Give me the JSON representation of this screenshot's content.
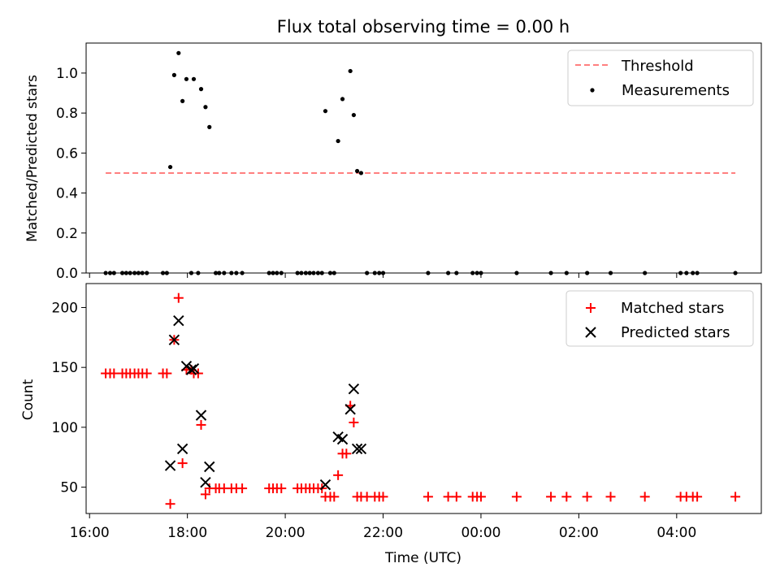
{
  "title": "Flux total observing time = 0.00 h",
  "chart_data": [
    {
      "type": "scatter",
      "ylabel": "Matched/Predicted stars",
      "xlim_hours": [
        15.93,
        29.73
      ],
      "ylim": [
        0,
        1.15
      ],
      "yticks": [
        0,
        0.2,
        0.4,
        0.6,
        0.8,
        1.0
      ],
      "ytick_labels": [
        "0.0",
        "0.2",
        "0.4",
        "0.6",
        "0.8",
        "1.0"
      ],
      "legend_position": "upper right",
      "threshold": {
        "name": "Threshold",
        "value": 0.5,
        "x_range": [
          16.33,
          29.2
        ],
        "color": "#ff7f7f",
        "style": "dashed"
      },
      "series": [
        {
          "name": "Measurements",
          "marker": "dot",
          "color": "#000000",
          "points": [
            [
              16.33,
              0
            ],
            [
              16.42,
              0
            ],
            [
              16.5,
              0
            ],
            [
              16.67,
              0
            ],
            [
              16.75,
              0
            ],
            [
              16.83,
              0
            ],
            [
              16.92,
              0
            ],
            [
              17.0,
              0
            ],
            [
              17.08,
              0
            ],
            [
              17.17,
              0
            ],
            [
              17.5,
              0
            ],
            [
              17.58,
              0
            ],
            [
              17.65,
              0.53
            ],
            [
              17.73,
              0.99
            ],
            [
              17.82,
              1.1
            ],
            [
              17.9,
              0.86
            ],
            [
              17.98,
              0.97
            ],
            [
              18.08,
              0
            ],
            [
              18.13,
              0.97
            ],
            [
              18.22,
              0
            ],
            [
              18.28,
              0.92
            ],
            [
              18.37,
              0.83
            ],
            [
              18.45,
              0.73
            ],
            [
              18.58,
              0
            ],
            [
              18.65,
              0
            ],
            [
              18.75,
              0
            ],
            [
              18.9,
              0
            ],
            [
              19.0,
              0
            ],
            [
              19.12,
              0
            ],
            [
              19.67,
              0
            ],
            [
              19.75,
              0
            ],
            [
              19.83,
              0
            ],
            [
              19.92,
              0
            ],
            [
              20.25,
              0
            ],
            [
              20.33,
              0
            ],
            [
              20.42,
              0
            ],
            [
              20.5,
              0
            ],
            [
              20.58,
              0
            ],
            [
              20.67,
              0
            ],
            [
              20.75,
              0
            ],
            [
              20.82,
              0.81
            ],
            [
              20.92,
              0
            ],
            [
              21.0,
              0
            ],
            [
              21.08,
              0.66
            ],
            [
              21.17,
              0.87
            ],
            [
              21.33,
              1.01
            ],
            [
              21.4,
              0.79
            ],
            [
              21.47,
              0.51
            ],
            [
              21.55,
              0.5
            ],
            [
              21.67,
              0
            ],
            [
              21.83,
              0
            ],
            [
              21.92,
              0
            ],
            [
              22.0,
              0
            ],
            [
              22.92,
              0
            ],
            [
              23.33,
              0
            ],
            [
              23.5,
              0
            ],
            [
              23.83,
              0
            ],
            [
              23.92,
              0
            ],
            [
              24.0,
              0
            ],
            [
              24.73,
              0
            ],
            [
              25.43,
              0
            ],
            [
              25.75,
              0
            ],
            [
              26.17,
              0
            ],
            [
              26.65,
              0
            ],
            [
              27.35,
              0
            ],
            [
              28.08,
              0
            ],
            [
              28.2,
              0
            ],
            [
              28.33,
              0
            ],
            [
              28.42,
              0
            ],
            [
              29.2,
              0
            ]
          ]
        }
      ]
    },
    {
      "type": "scatter",
      "xlabel": "Time (UTC)",
      "ylabel": "Count",
      "xlim_hours": [
        15.93,
        29.73
      ],
      "ylim": [
        28,
        220
      ],
      "yticks": [
        50,
        100,
        150,
        200
      ],
      "ytick_labels": [
        "50",
        "100",
        "150",
        "200"
      ],
      "xticks_hours": [
        16,
        18,
        20,
        22,
        24,
        26,
        28
      ],
      "xtick_labels": [
        "16:00",
        "18:00",
        "20:00",
        "22:00",
        "00:00",
        "02:00",
        "04:00"
      ],
      "legend_position": "upper right",
      "series": [
        {
          "name": "Matched stars",
          "marker": "plus",
          "color": "#ff0000",
          "points": [
            [
              16.33,
              145
            ],
            [
              16.42,
              145
            ],
            [
              16.5,
              145
            ],
            [
              16.67,
              145
            ],
            [
              16.75,
              145
            ],
            [
              16.83,
              145
            ],
            [
              16.92,
              145
            ],
            [
              17.0,
              145
            ],
            [
              17.08,
              145
            ],
            [
              17.17,
              145
            ],
            [
              17.5,
              145
            ],
            [
              17.58,
              145
            ],
            [
              17.65,
              36
            ],
            [
              17.73,
              173
            ],
            [
              17.82,
              208
            ],
            [
              17.9,
              70
            ],
            [
              17.98,
              148
            ],
            [
              18.08,
              148
            ],
            [
              18.13,
              145
            ],
            [
              18.22,
              145
            ],
            [
              18.28,
              102
            ],
            [
              18.37,
              44
            ],
            [
              18.45,
              49
            ],
            [
              18.58,
              49
            ],
            [
              18.65,
              49
            ],
            [
              18.75,
              49
            ],
            [
              18.9,
              49
            ],
            [
              19.0,
              49
            ],
            [
              19.12,
              49
            ],
            [
              19.67,
              49
            ],
            [
              19.75,
              49
            ],
            [
              19.83,
              49
            ],
            [
              19.92,
              49
            ],
            [
              20.25,
              49
            ],
            [
              20.33,
              49
            ],
            [
              20.42,
              49
            ],
            [
              20.5,
              49
            ],
            [
              20.58,
              49
            ],
            [
              20.67,
              49
            ],
            [
              20.75,
              49
            ],
            [
              20.82,
              42
            ],
            [
              20.92,
              42
            ],
            [
              21.0,
              42
            ],
            [
              21.08,
              60
            ],
            [
              21.17,
              78
            ],
            [
              21.25,
              78
            ],
            [
              21.33,
              118
            ],
            [
              21.4,
              104
            ],
            [
              21.47,
              42
            ],
            [
              21.55,
              42
            ],
            [
              21.67,
              42
            ],
            [
              21.83,
              42
            ],
            [
              21.92,
              42
            ],
            [
              22.0,
              42
            ],
            [
              22.92,
              42
            ],
            [
              23.33,
              42
            ],
            [
              23.5,
              42
            ],
            [
              23.83,
              42
            ],
            [
              23.92,
              42
            ],
            [
              24.0,
              42
            ],
            [
              24.73,
              42
            ],
            [
              25.43,
              42
            ],
            [
              25.75,
              42
            ],
            [
              26.17,
              42
            ],
            [
              26.65,
              42
            ],
            [
              27.35,
              42
            ],
            [
              28.08,
              42
            ],
            [
              28.2,
              42
            ],
            [
              28.33,
              42
            ],
            [
              28.42,
              42
            ],
            [
              29.2,
              42
            ]
          ]
        },
        {
          "name": "Predicted stars",
          "marker": "x",
          "color": "#000000",
          "points": [
            [
              17.65,
              68
            ],
            [
              17.73,
              173
            ],
            [
              17.82,
              189
            ],
            [
              17.9,
              82
            ],
            [
              17.98,
              151
            ],
            [
              18.08,
              148
            ],
            [
              18.13,
              149
            ],
            [
              18.28,
              110
            ],
            [
              18.37,
              54
            ],
            [
              18.45,
              67
            ],
            [
              20.82,
              52
            ],
            [
              21.08,
              92
            ],
            [
              21.17,
              90
            ],
            [
              21.33,
              115
            ],
            [
              21.4,
              132
            ],
            [
              21.47,
              82
            ],
            [
              21.55,
              82
            ]
          ]
        }
      ]
    }
  ]
}
